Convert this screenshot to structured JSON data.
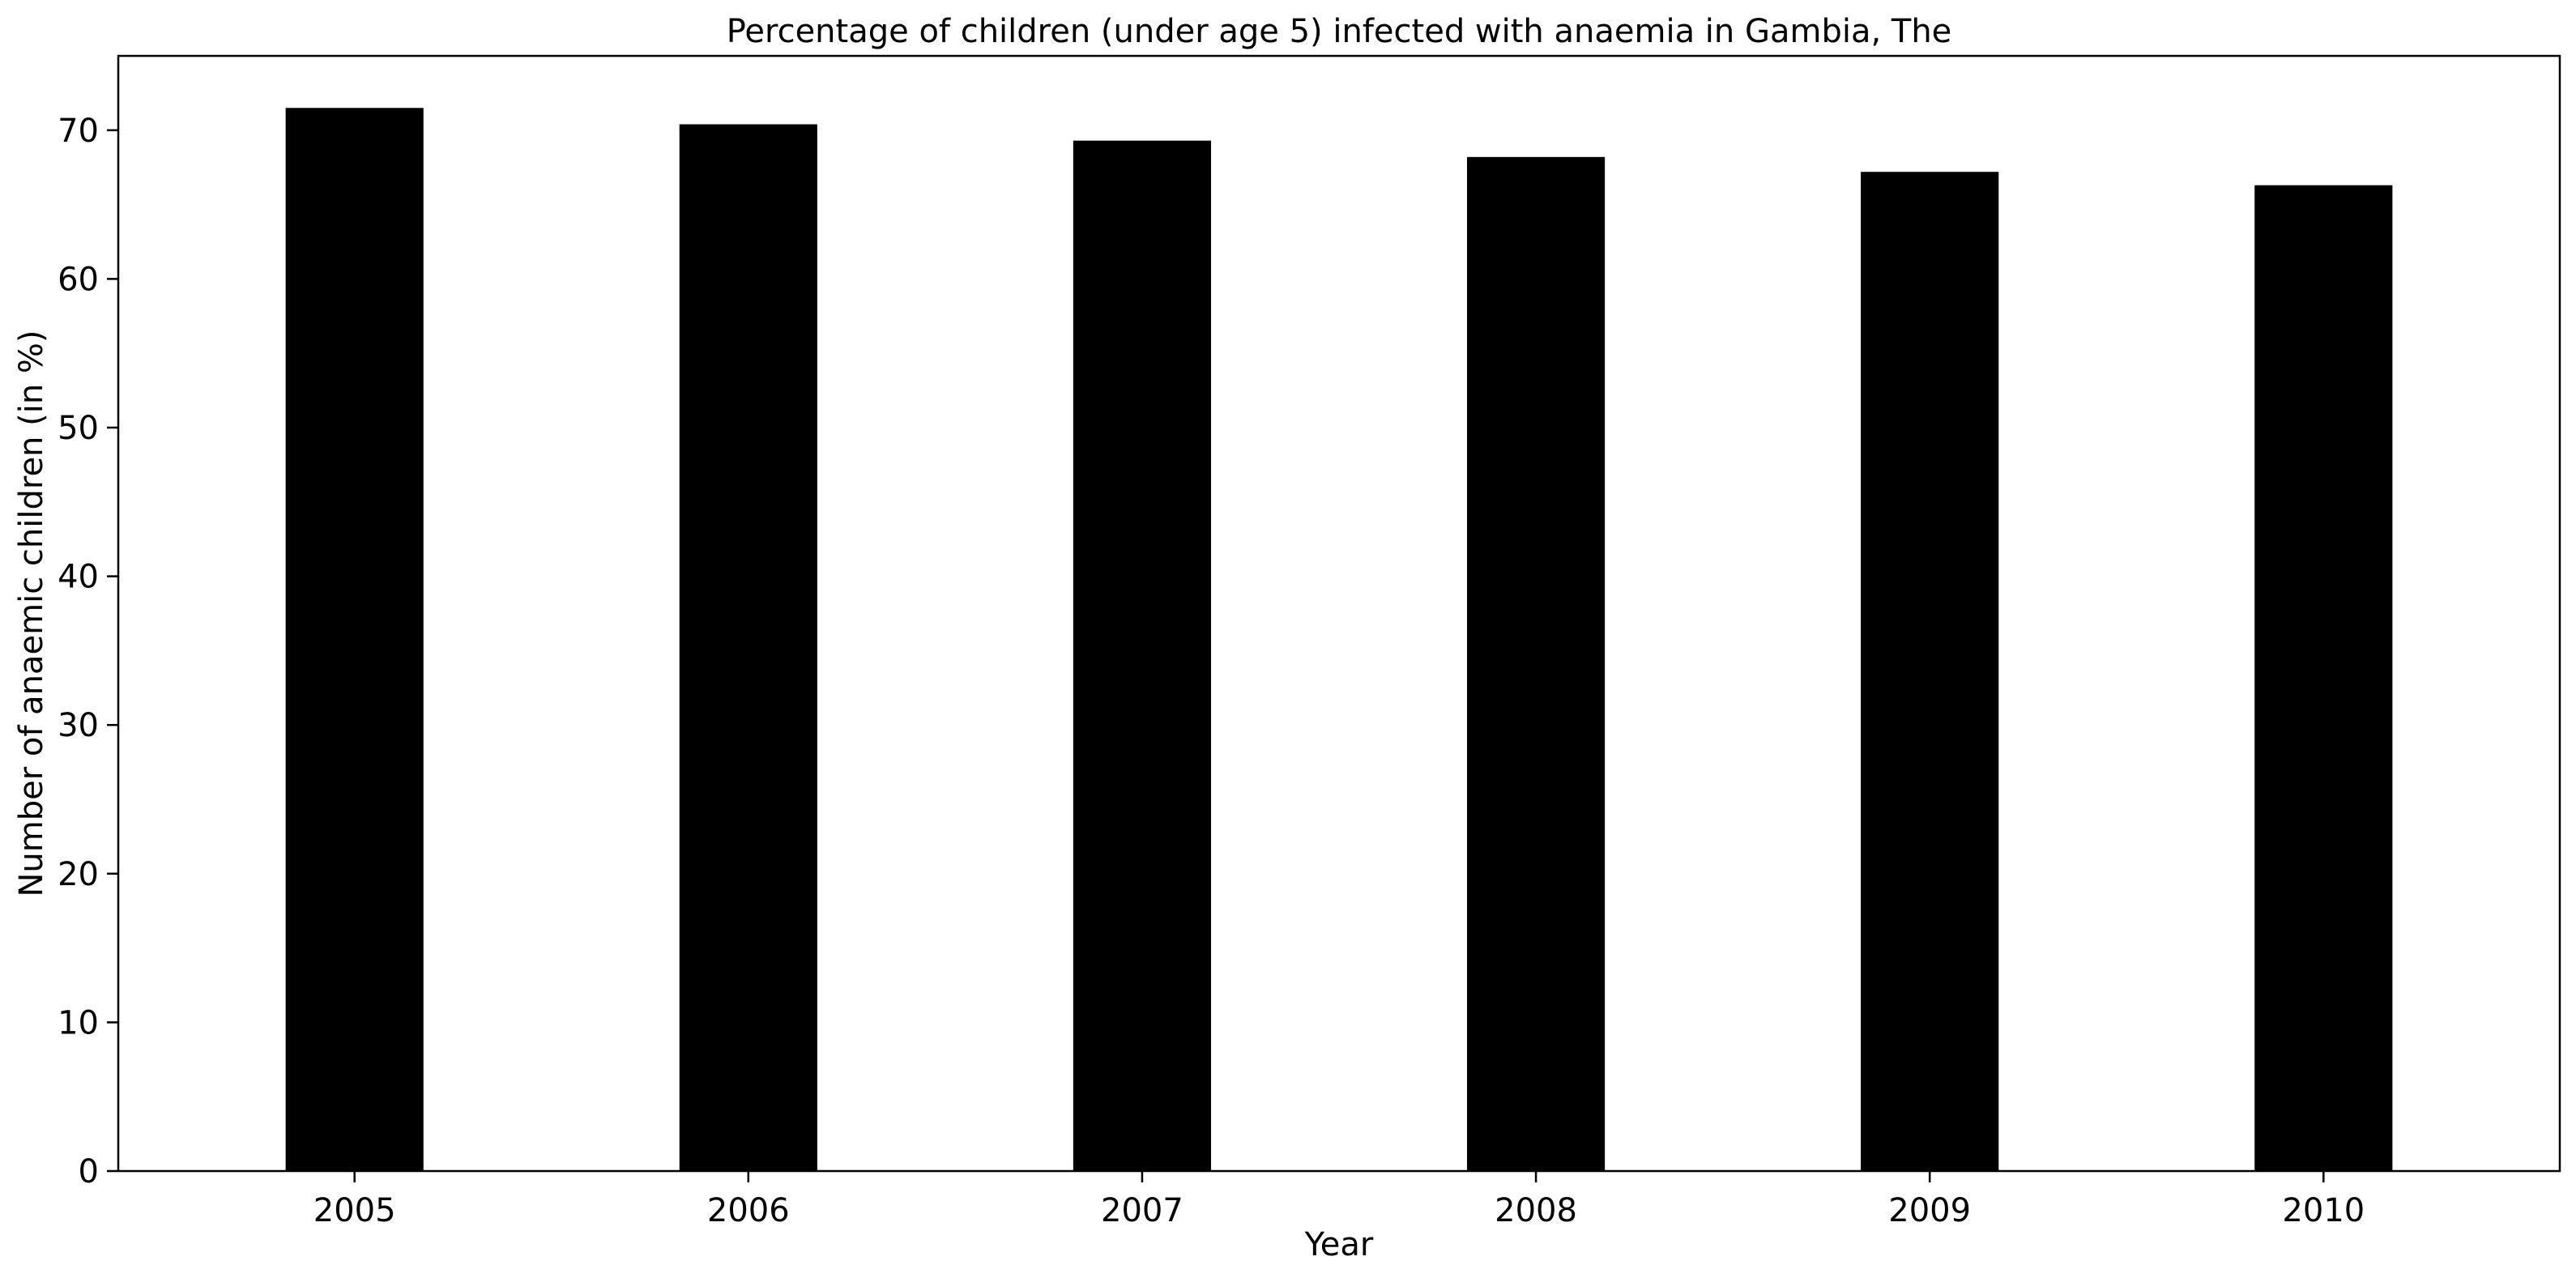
{
  "chart_data": {
    "type": "bar",
    "title": "Percentage of children (under age 5) infected with anaemia in Gambia, The",
    "xlabel": "Year",
    "ylabel": "Number of anaemic children (in %)",
    "categories": [
      "2005",
      "2006",
      "2007",
      "2008",
      "2009",
      "2010"
    ],
    "values": [
      71.5,
      70.4,
      69.3,
      68.2,
      67.2,
      66.3
    ],
    "ylim": [
      0,
      75
    ],
    "yticks": [
      0,
      10,
      20,
      30,
      40,
      50,
      60,
      70
    ],
    "grid": false,
    "legend": "none",
    "bar_color": "#000000"
  }
}
